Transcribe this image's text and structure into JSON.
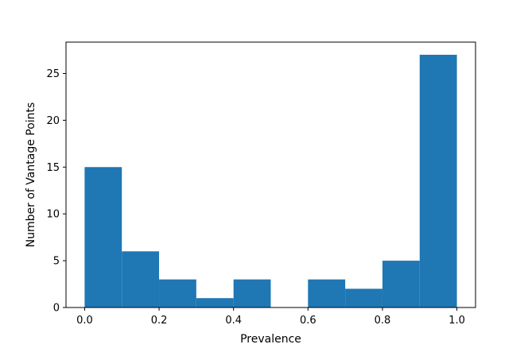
{
  "chart_data": {
    "type": "bar",
    "subtype": "histogram",
    "title": "",
    "xlabel": "Prevalence",
    "ylabel": "Number of Vantage Points",
    "bin_edges": [
      0.0,
      0.1,
      0.2,
      0.3,
      0.4,
      0.5,
      0.6,
      0.7,
      0.8,
      0.9,
      1.0
    ],
    "values": [
      15,
      6,
      3,
      1,
      3,
      0,
      3,
      2,
      5,
      27
    ],
    "xlim": [
      -0.05,
      1.05
    ],
    "ylim": [
      0,
      28.35
    ],
    "xticks": [
      0.0,
      0.2,
      0.4,
      0.6,
      0.8,
      1.0
    ],
    "xtick_labels": [
      "0.0",
      "0.2",
      "0.4",
      "0.6",
      "0.8",
      "1.0"
    ],
    "yticks": [
      0,
      5,
      10,
      15,
      20,
      25
    ],
    "ytick_labels": [
      "0",
      "5",
      "10",
      "15",
      "20",
      "25"
    ],
    "bar_color": "#1f77b4",
    "grid": false,
    "legend": "none"
  }
}
